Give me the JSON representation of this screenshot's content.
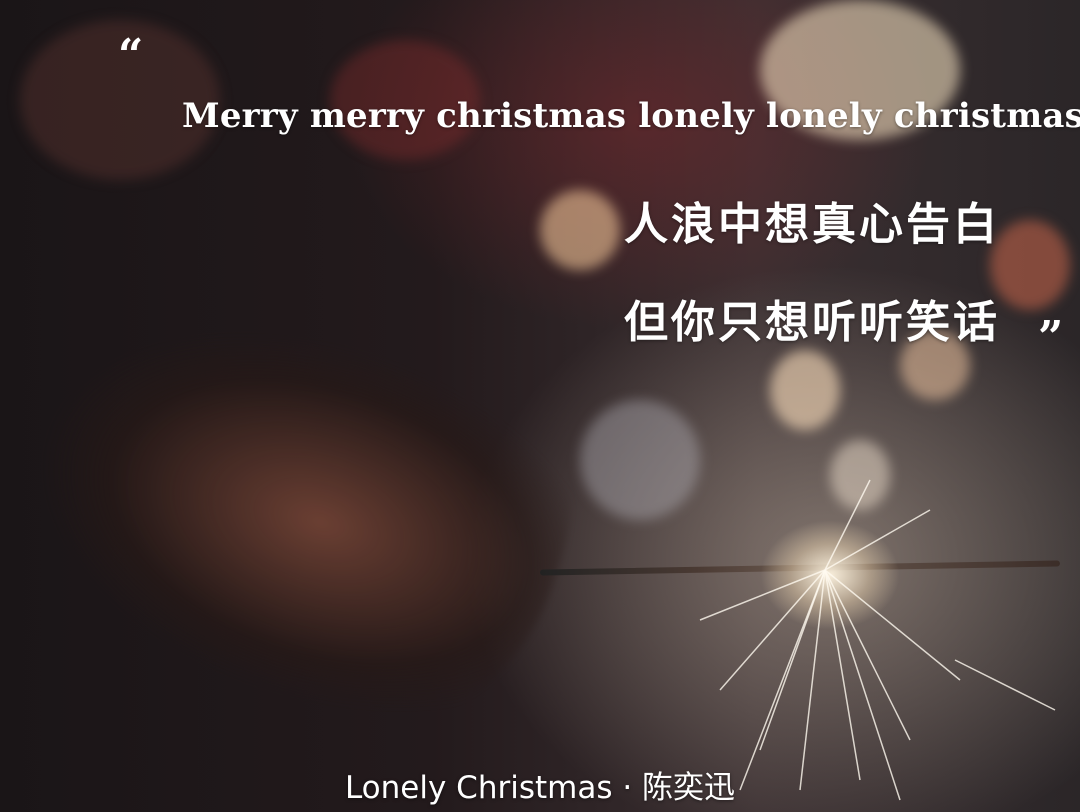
{
  "quotes": {
    "open": "“",
    "close": "”"
  },
  "lyrics": {
    "english": "Merry merry christmas lonely lonely christmas",
    "chinese_line1": "人浪中想真心告白",
    "chinese_line2": "但你只想听听笑话"
  },
  "caption": "Lonely Christmas · 陈奕迅"
}
